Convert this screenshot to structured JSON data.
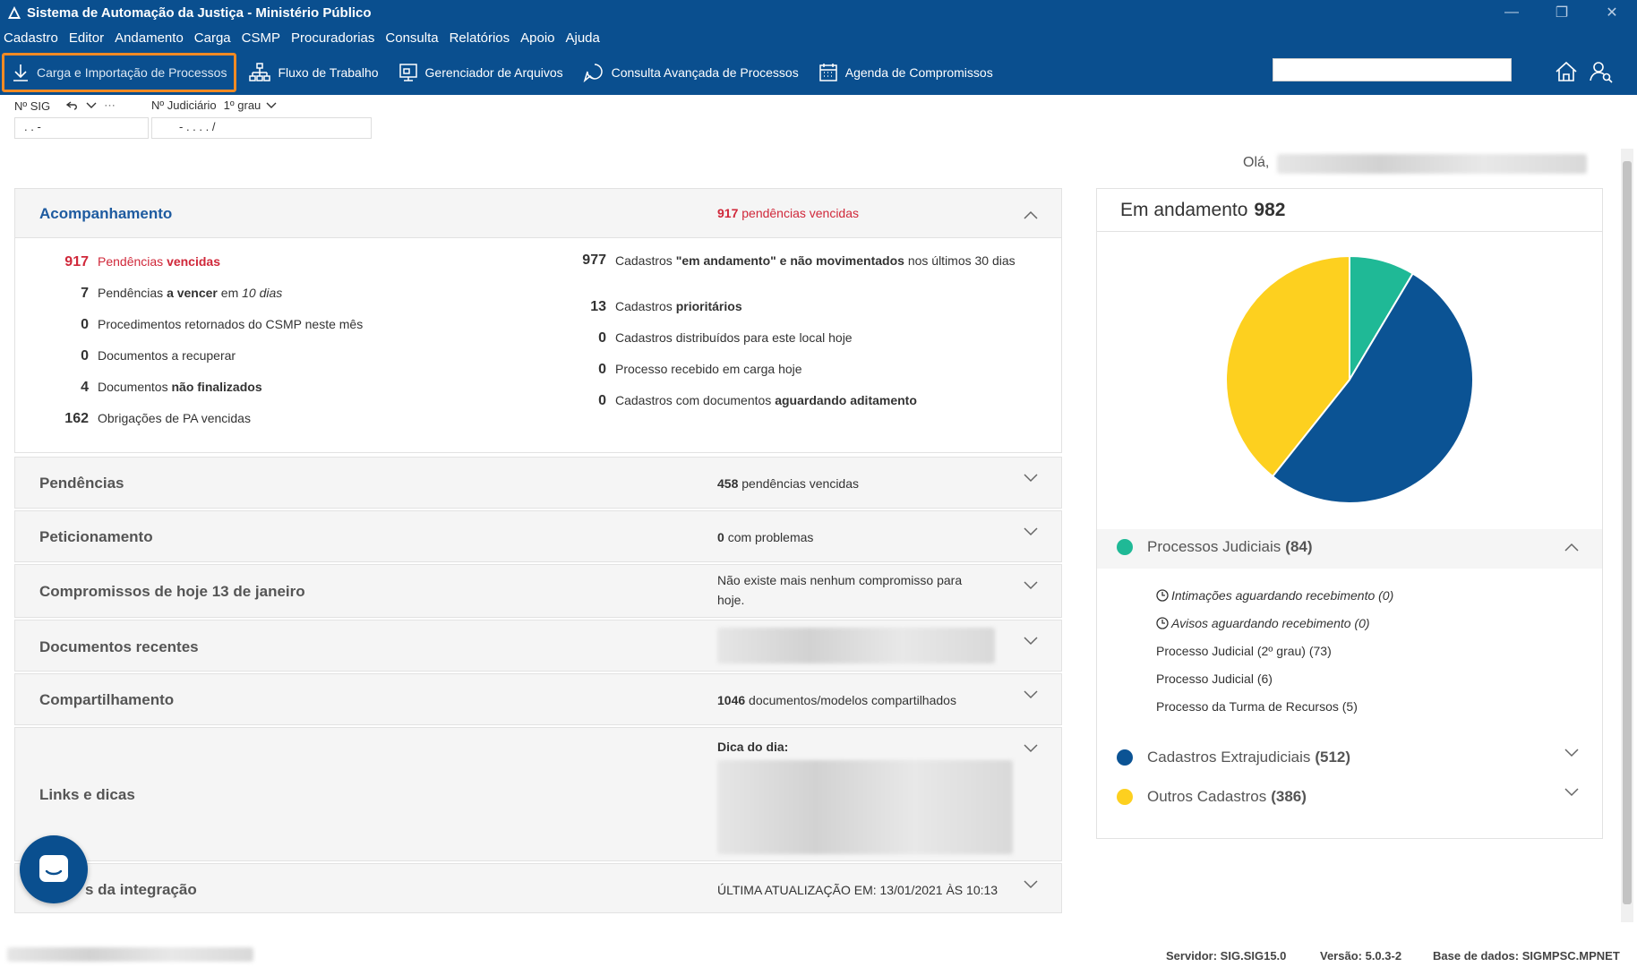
{
  "window": {
    "title": "Sistema de Automação da Justiça - Ministério Público",
    "controls": {
      "minimize": "—",
      "restore": "❐",
      "close": "✕"
    }
  },
  "menu": [
    "Cadastro",
    "Editor",
    "Andamento",
    "Carga",
    "CSMP",
    "Procuradorias",
    "Consulta",
    "Relatórios",
    "Apoio",
    "Ajuda"
  ],
  "toolbar": {
    "buttons": [
      {
        "label": "Carga e Importação de Processos",
        "icon": "download-icon"
      },
      {
        "label": "Fluxo de Trabalho",
        "icon": "workflow-icon"
      },
      {
        "label": "Gerenciador de Arquivos",
        "icon": "file-manager-icon"
      },
      {
        "label": "Consulta Avançada de Processos",
        "icon": "advanced-search-icon"
      },
      {
        "label": "Agenda de Compromissos",
        "icon": "calendar-icon"
      }
    ],
    "search_value": ""
  },
  "fields": {
    "sig_label": "Nº SIG",
    "sig_extra": "⋯",
    "sig_value": ". .  -",
    "judicial_label": "Nº Judiciário",
    "grau": "1º grau",
    "judicial_value": "- .  . . .  /"
  },
  "greeting": "Olá,",
  "acompanhamento": {
    "title": "Acompanhamento",
    "summary_count": "917",
    "summary_text": "pendências vencidas",
    "left": [
      {
        "num": "917",
        "pre": "Pendências ",
        "bold": "vencidas",
        "post": ""
      },
      {
        "num": "7",
        "pre": "Pendências ",
        "bold": "a vencer",
        "post": " em ",
        "italic": "10 dias"
      },
      {
        "num": "0",
        "pre": "Procedimentos retornados do CSMP neste mês",
        "bold": "",
        "post": ""
      },
      {
        "num": "0",
        "pre": "Documentos a recuperar",
        "bold": "",
        "post": ""
      },
      {
        "num": "4",
        "pre": "Documentos ",
        "bold": "não finalizados",
        "post": ""
      },
      {
        "num": "162",
        "pre": "Obrigações de PA vencidas",
        "bold": "",
        "post": ""
      }
    ],
    "right": [
      {
        "num": "977",
        "pre": "Cadastros ",
        "bold": "\"em andamento\" e não movimentados",
        "post": " nos últimos 30 dias"
      },
      {
        "num": "13",
        "pre": "Cadastros ",
        "bold": "prioritários",
        "post": ""
      },
      {
        "num": "0",
        "pre": "Cadastros distribuídos para este local hoje",
        "bold": "",
        "post": ""
      },
      {
        "num": "0",
        "pre": "Processo recebido em carga hoje",
        "bold": "",
        "post": ""
      },
      {
        "num": "0",
        "pre": "Cadastros com documentos ",
        "bold": "aguardando aditamento",
        "post": ""
      }
    ]
  },
  "panels": {
    "pendencias": {
      "title": "Pendências",
      "count": "458",
      "text": "pendências vencidas"
    },
    "peticionamento": {
      "title": "Peticionamento",
      "count": "0",
      "text": "com problemas"
    },
    "compromissos": {
      "title": "Compromissos de hoje 13 de janeiro",
      "text": "Não existe mais nenhum compromisso para hoje."
    },
    "documentos": {
      "title": "Documentos recentes"
    },
    "compartilhamento": {
      "title": "Compartilhamento",
      "count": "1046",
      "text": "documentos/modelos compartilhados"
    },
    "links": {
      "title": "Links e dicas",
      "tip_label": "Dica do dia:"
    },
    "integracao": {
      "title": "s da integração",
      "text": "ÚLTIMA ATUALIZAÇÃO EM: 13/01/2021 ÀS 10:13"
    }
  },
  "em_andamento": {
    "title": "Em andamento",
    "total": "982",
    "groups": [
      {
        "name": "Processos Judiciais",
        "count": "(84)",
        "color": "#1fb996"
      },
      {
        "name": "Cadastros Extrajudiciais",
        "count": "(512)",
        "color": "#0b5394"
      },
      {
        "name": "Outros Cadastros",
        "count": "(386)",
        "color": "#fdd01f"
      }
    ],
    "sub_items": [
      {
        "label": "Intimações aguardando recebimento (0)",
        "clock": true
      },
      {
        "label": "Avisos aguardando recebimento (0)",
        "clock": true
      },
      {
        "label": "Processo Judicial (2º grau) (73)",
        "clock": false
      },
      {
        "label": "Processo Judicial (6)",
        "clock": false
      },
      {
        "label": "Processo da Turma de Recursos (5)",
        "clock": false
      }
    ]
  },
  "chart_data": {
    "type": "pie",
    "title": "",
    "slices": [
      {
        "label": "Processos Judiciais",
        "value": 84,
        "color": "#1fb996"
      },
      {
        "label": "Cadastros Extrajudiciais",
        "value": 512,
        "color": "#0b5394"
      },
      {
        "label": "Outros Cadastros",
        "value": 386,
        "color": "#fdd01f"
      }
    ]
  },
  "status": {
    "servidor": "Servidor: SIG.SIG15.0",
    "versao": "Versão: 5.0.3-2",
    "base": "Base de dados: SIGMPSC.MPNET"
  }
}
